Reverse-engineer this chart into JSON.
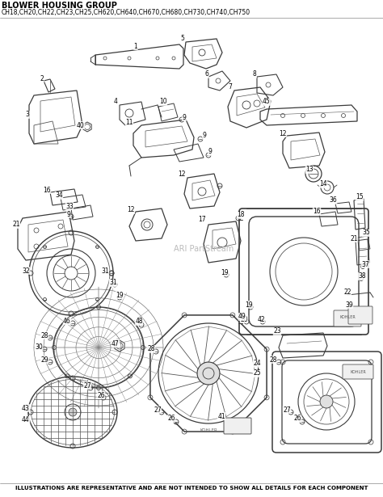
{
  "title_line1": "BLOWER HOUSING GROUP",
  "title_line2": "CH18,CH20,CH22,CH23,CH25,CH620,CH640,CH670,CH680,CH730,CH740,CH750",
  "footer": "ILLUSTRATIONS ARE REPRESENTATIVE AND ARE NOT INTENDED TO SHOW ALL DETAILS FOR EACH COMPONENT",
  "watermark": "ARI PartStream",
  "bg_color": "#ffffff",
  "fig_width": 4.74,
  "fig_height": 6.15,
  "dpi": 100
}
